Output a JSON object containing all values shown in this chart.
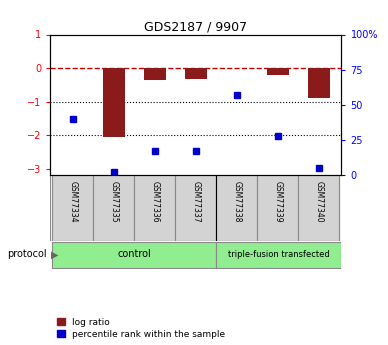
{
  "title": "GDS2187 / 9907",
  "samples": [
    "GSM77334",
    "GSM77335",
    "GSM77336",
    "GSM77337",
    "GSM77338",
    "GSM77339",
    "GSM77340"
  ],
  "log_ratio": [
    0.0,
    -2.05,
    -0.35,
    -0.32,
    0.0,
    -0.22,
    -0.9
  ],
  "percentile_rank": [
    40,
    2,
    17,
    17,
    57,
    28,
    5
  ],
  "ylim_left": [
    -3.2,
    1.0
  ],
  "ylim_right": [
    0,
    100
  ],
  "bar_color": "#8B1A1A",
  "dot_color": "#0000CC",
  "dashed_line_color": "#CC0000",
  "yticks_left": [
    -3,
    -2,
    -1,
    0,
    1
  ],
  "yticks_right": [
    0,
    25,
    50,
    75,
    100
  ],
  "bar_width": 0.55,
  "ctrl_color": "#90EE90",
  "ctrl_label": "control",
  "tf_label": "triple-fusion transfected",
  "legend_log": "log ratio",
  "legend_pct": "percentile rank within the sample",
  "protocol_text": "protocol"
}
